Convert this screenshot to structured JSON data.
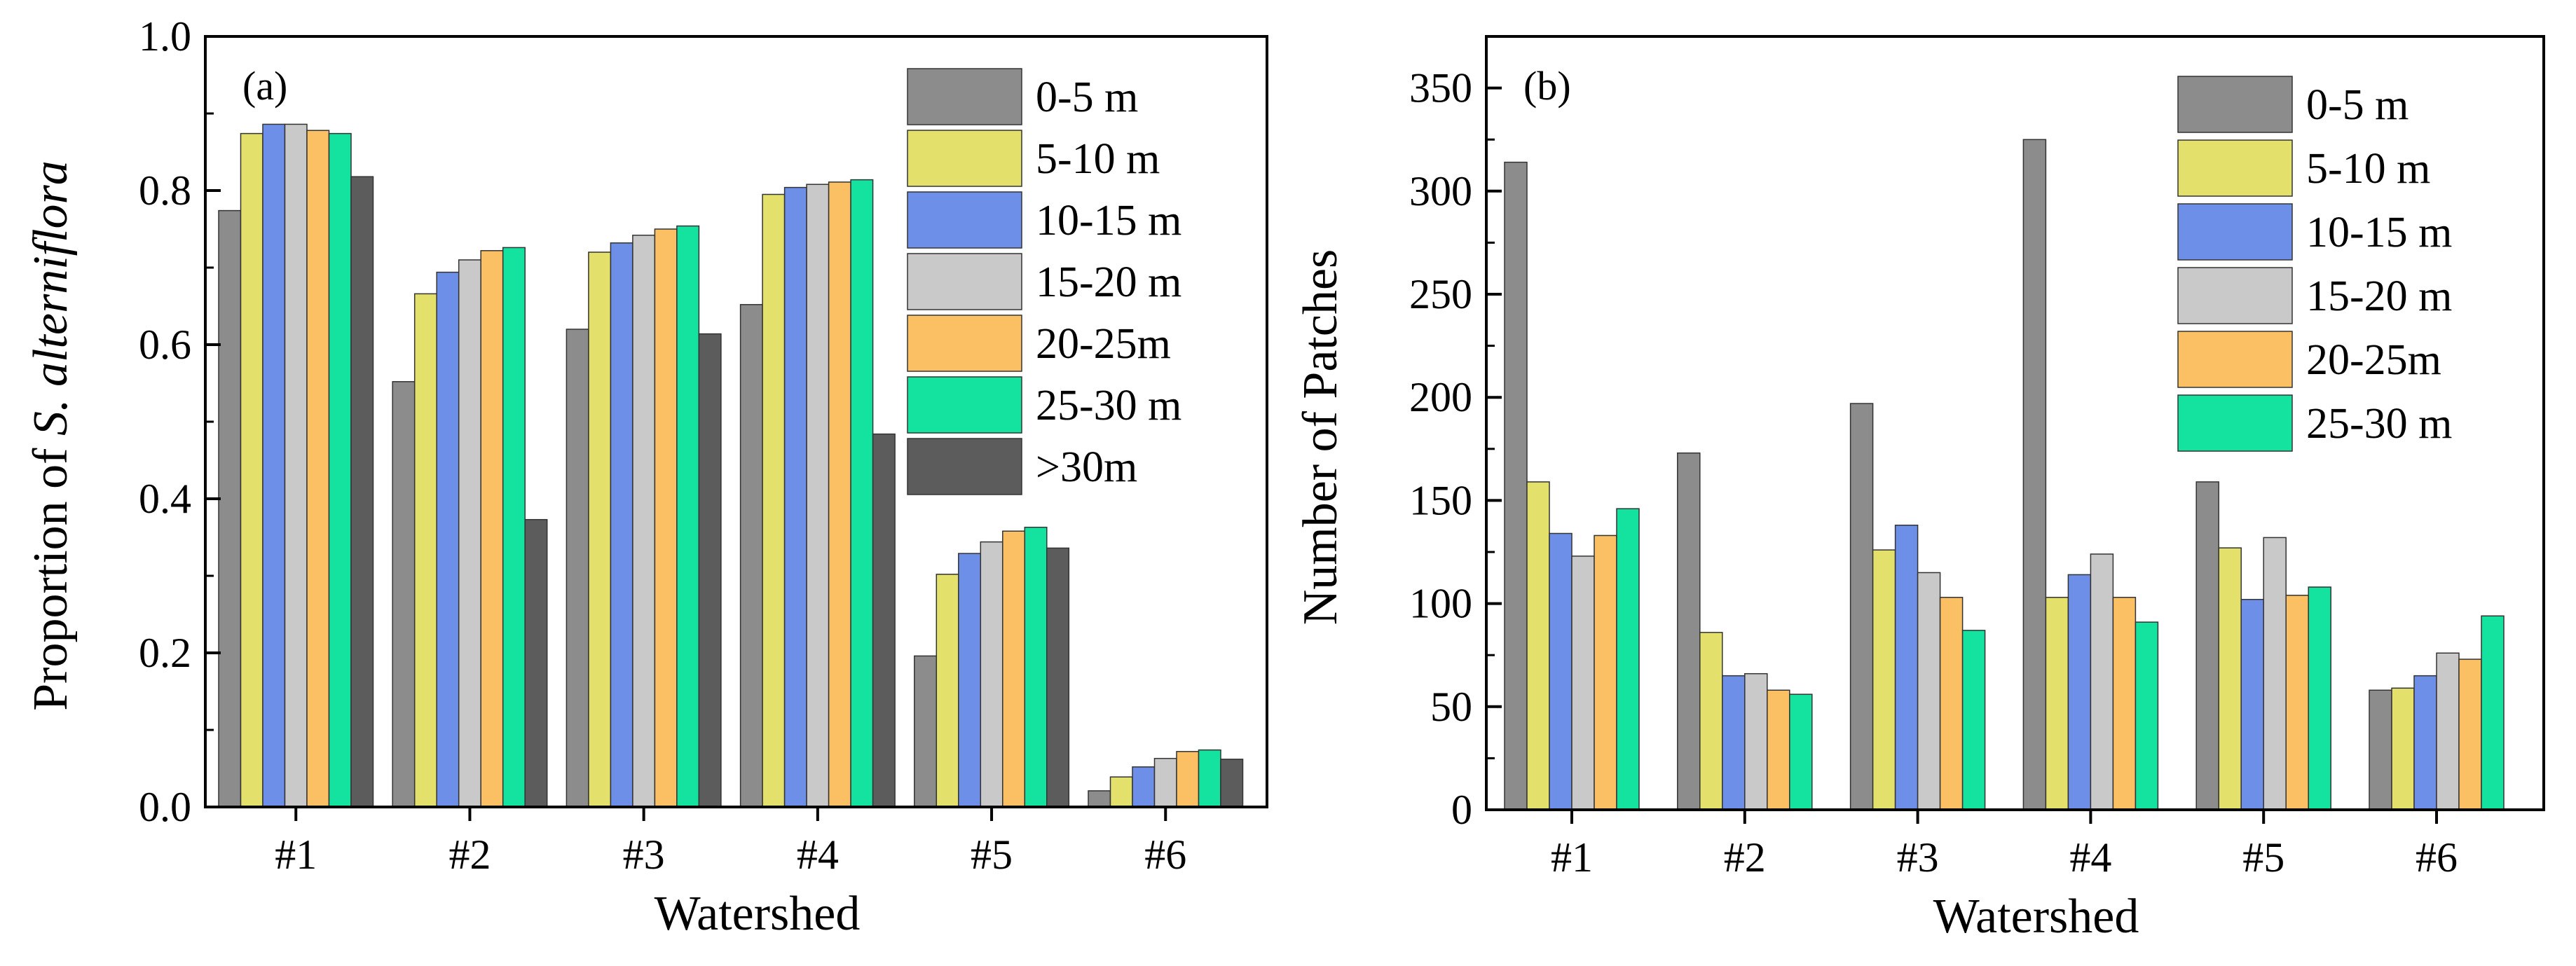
{
  "chart_data": [
    {
      "type": "bar",
      "panel_label": "(a)",
      "title": "",
      "xlabel": "Watershed",
      "ylabel_prefix": "Proportion of ",
      "ylabel_italic": "S. alterniflora",
      "ylim": [
        0,
        1.0
      ],
      "yticks": [
        "0.0",
        "0.2",
        "0.4",
        "0.6",
        "0.8",
        "1.0"
      ],
      "categories": [
        "#1",
        "#2",
        "#3",
        "#4",
        "#5",
        "#6"
      ],
      "legend_position": "top-right",
      "series": [
        {
          "name": "0-5 m",
          "color": "#8c8c8c",
          "values": [
            0.774,
            0.552,
            0.62,
            0.652,
            0.196,
            0.021
          ]
        },
        {
          "name": "5-10 m",
          "color": "#e3e06c",
          "values": [
            0.874,
            0.666,
            0.72,
            0.795,
            0.302,
            0.039
          ]
        },
        {
          "name": "10-15 m",
          "color": "#6d8fe8",
          "values": [
            0.886,
            0.694,
            0.732,
            0.804,
            0.329,
            0.052
          ]
        },
        {
          "name": "15-20 m",
          "color": "#c9c9c9",
          "values": [
            0.886,
            0.71,
            0.742,
            0.808,
            0.344,
            0.063
          ]
        },
        {
          "name": "20-25m",
          "color": "#fbbf64",
          "values": [
            0.878,
            0.722,
            0.75,
            0.811,
            0.358,
            0.072
          ]
        },
        {
          "name": "25-30 m",
          "color": "#14e3a0",
          "values": [
            0.874,
            0.726,
            0.754,
            0.814,
            0.363,
            0.074
          ]
        },
        {
          "name": ">30m",
          "color": "#5c5c5c",
          "values": [
            0.818,
            0.373,
            0.614,
            0.484,
            0.336,
            0.062
          ]
        }
      ]
    },
    {
      "type": "bar",
      "panel_label": "(b)",
      "title": "",
      "xlabel": "Watershed",
      "ylabel": "Number of Patches",
      "ylim": [
        0,
        375
      ],
      "yticks": [
        "0",
        "50",
        "100",
        "150",
        "200",
        "250",
        "300",
        "350"
      ],
      "categories": [
        "#1",
        "#2",
        "#3",
        "#4",
        "#5",
        "#6"
      ],
      "legend_position": "top-right",
      "series": [
        {
          "name": "0-5 m",
          "color": "#8c8c8c",
          "values": [
            314,
            173,
            197,
            325,
            159,
            58
          ]
        },
        {
          "name": "5-10 m",
          "color": "#e3e06c",
          "values": [
            159,
            86,
            126,
            103,
            127,
            59
          ]
        },
        {
          "name": "10-15 m",
          "color": "#6d8fe8",
          "values": [
            134,
            65,
            138,
            114,
            102,
            65
          ]
        },
        {
          "name": "15-20 m",
          "color": "#c9c9c9",
          "values": [
            123,
            66,
            115,
            124,
            132,
            76
          ]
        },
        {
          "name": "20-25m",
          "color": "#fbbf64",
          "values": [
            133,
            58,
            103,
            103,
            104,
            73
          ]
        },
        {
          "name": "25-30 m",
          "color": "#14e3a0",
          "values": [
            146,
            56,
            87,
            91,
            108,
            94
          ]
        }
      ]
    }
  ]
}
